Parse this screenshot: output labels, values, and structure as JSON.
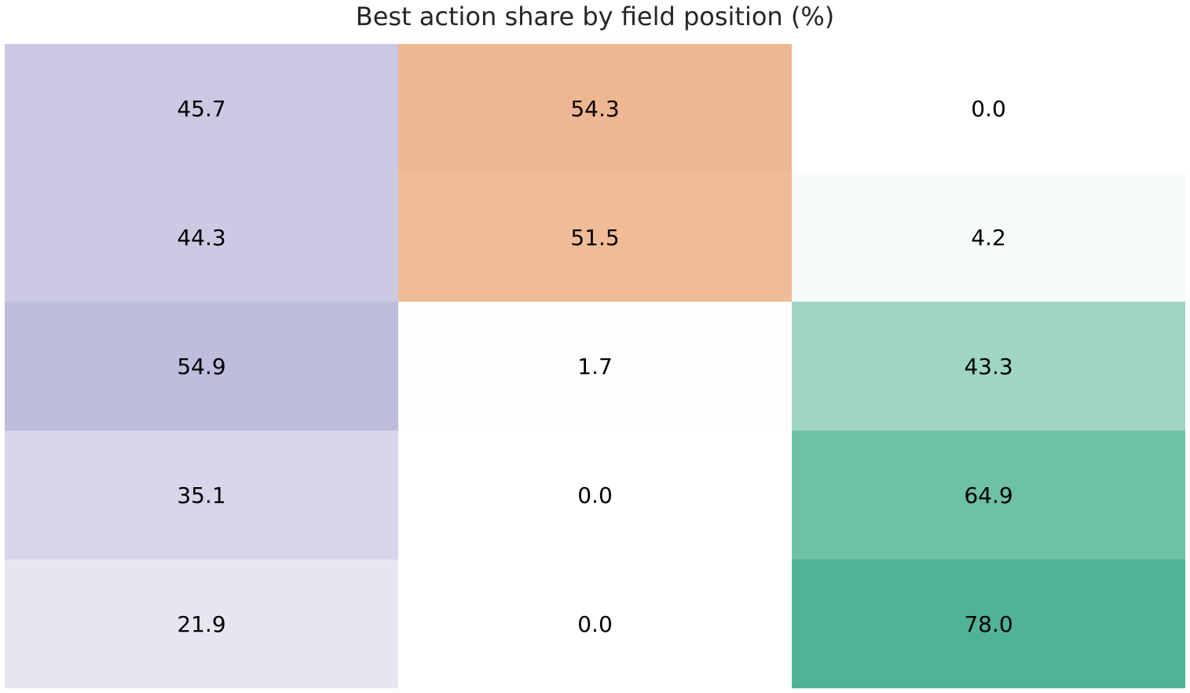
{
  "chart_data": {
    "type": "heatmap",
    "title": "Best action share by field position (%)",
    "xlabel": "",
    "ylabel": "",
    "grid": false,
    "legend": "none",
    "value_range": [
      0,
      100
    ],
    "column_colors": [
      "#8b87c0",
      "#e27a35",
      "#1f9e78"
    ],
    "values": [
      [
        45.7,
        54.3,
        0.0
      ],
      [
        44.3,
        51.5,
        4.2
      ],
      [
        54.9,
        1.7,
        43.3
      ],
      [
        35.1,
        0.0,
        64.9
      ],
      [
        21.9,
        0.0,
        78.0
      ]
    ]
  }
}
